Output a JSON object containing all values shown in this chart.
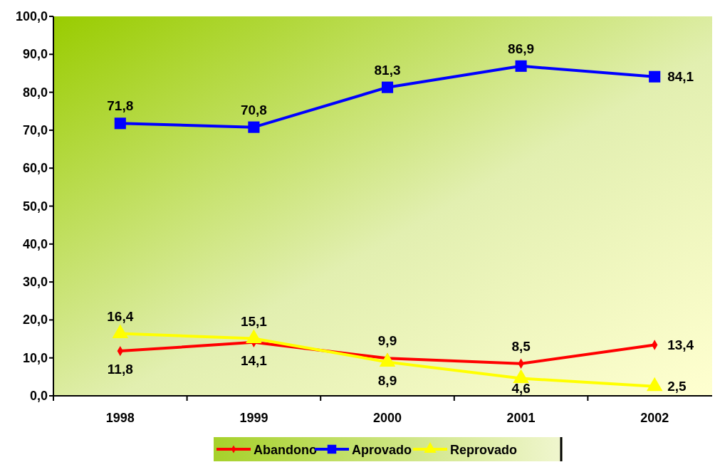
{
  "chart_data": {
    "type": "line",
    "categories": [
      "1998",
      "1999",
      "2000",
      "2001",
      "2002"
    ],
    "ylim": [
      0,
      100
    ],
    "yticks": [
      {
        "value": 0,
        "label": "0,0"
      },
      {
        "value": 10,
        "label": "10,0"
      },
      {
        "value": 20,
        "label": "20,0"
      },
      {
        "value": 30,
        "label": "30,0"
      },
      {
        "value": 40,
        "label": "40,0"
      },
      {
        "value": 50,
        "label": "50,0"
      },
      {
        "value": 60,
        "label": "60,0"
      },
      {
        "value": 70,
        "label": "70,0"
      },
      {
        "value": 80,
        "label": "80,0"
      },
      {
        "value": 90,
        "label": "90,0"
      },
      {
        "value": 100,
        "label": "100,0"
      }
    ],
    "grid": false,
    "legend": "bottom",
    "series": [
      {
        "name": "Abandono",
        "color": "#ff0000",
        "marker": "diamond",
        "values": [
          11.8,
          14.1,
          9.9,
          8.5,
          13.4
        ],
        "value_labels": [
          "11,8",
          "14,1",
          "9,9",
          "8,5",
          "13,4"
        ]
      },
      {
        "name": "Aprovado",
        "color": "#0000ff",
        "marker": "square",
        "values": [
          71.8,
          70.8,
          81.3,
          86.9,
          84.1
        ],
        "value_labels": [
          "71,8",
          "70,8",
          "81,3",
          "86,9",
          "84,1"
        ]
      },
      {
        "name": "Reprovado",
        "color": "#ffff00",
        "marker": "triangle",
        "values": [
          16.4,
          15.1,
          8.9,
          4.6,
          2.5
        ],
        "value_labels": [
          "16,4",
          "15,1",
          "8,9",
          "4,6",
          "2,5"
        ]
      }
    ]
  }
}
